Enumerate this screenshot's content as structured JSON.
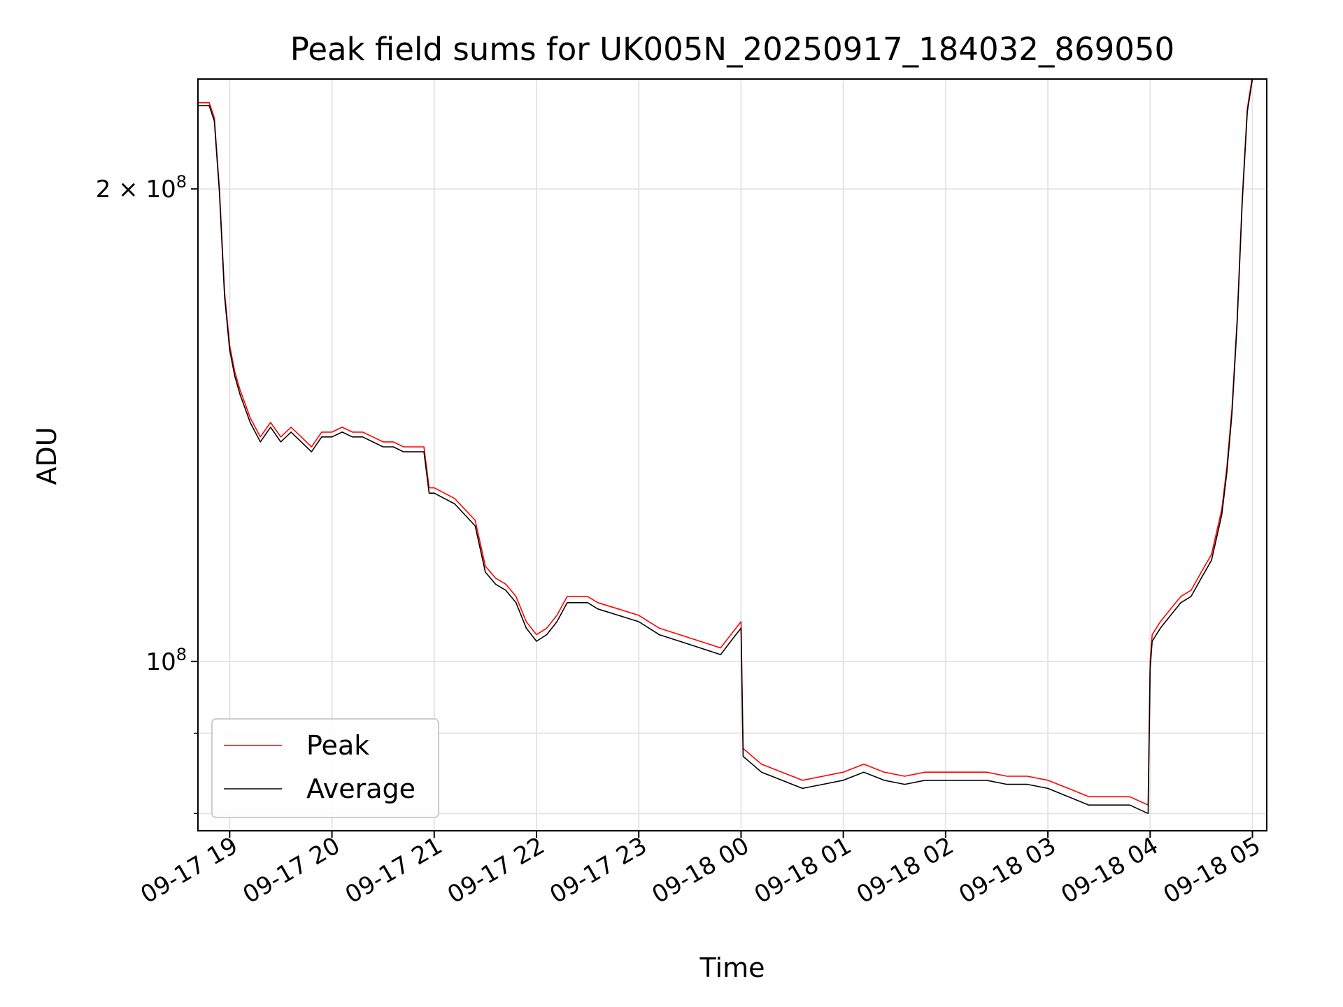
{
  "chart_data": {
    "type": "line",
    "title": "Peak field sums for UK005N_20250917_184032_869050",
    "xlabel": "Time",
    "ylabel": "ADU",
    "y_scale": "log",
    "grid": true,
    "legend_position": "lower-left",
    "x_range_hours": [
      -0.31,
      10.14
    ],
    "x_origin": "09-17 19",
    "ylim": [
      78000000,
      235000000
    ],
    "x_ticks": [
      {
        "hours": 0,
        "label": "09-17 19"
      },
      {
        "hours": 1,
        "label": "09-17 20"
      },
      {
        "hours": 2,
        "label": "09-17 21"
      },
      {
        "hours": 3,
        "label": "09-17 22"
      },
      {
        "hours": 4,
        "label": "09-17 23"
      },
      {
        "hours": 5,
        "label": "09-18 00"
      },
      {
        "hours": 6,
        "label": "09-18 01"
      },
      {
        "hours": 7,
        "label": "09-18 02"
      },
      {
        "hours": 8,
        "label": "09-18 03"
      },
      {
        "hours": 9,
        "label": "09-18 04"
      },
      {
        "hours": 10,
        "label": "09-18 05"
      }
    ],
    "y_major_ticks": [
      {
        "value": 100000000,
        "label_base": "10",
        "label_exp": "8"
      },
      {
        "value": 200000000,
        "label_base": "2 × 10",
        "label_exp": "8"
      }
    ],
    "y_minor_ticks": [
      80000000,
      90000000
    ],
    "series": [
      {
        "name": "Peak",
        "color": "#ff0000",
        "hours": [
          -0.31,
          -0.2,
          -0.15,
          -0.1,
          -0.05,
          0.0,
          0.05,
          0.1,
          0.15,
          0.2,
          0.3,
          0.4,
          0.5,
          0.6,
          0.7,
          0.8,
          0.9,
          1.0,
          1.1,
          1.2,
          1.3,
          1.4,
          1.5,
          1.6,
          1.7,
          1.8,
          1.9,
          1.95,
          2.0,
          2.2,
          2.4,
          2.5,
          2.6,
          2.7,
          2.8,
          2.9,
          3.0,
          3.1,
          3.2,
          3.3,
          3.4,
          3.5,
          3.6,
          3.8,
          4.0,
          4.2,
          4.4,
          4.6,
          4.8,
          4.9,
          5.0,
          5.02,
          5.2,
          5.4,
          5.6,
          5.8,
          6.0,
          6.2,
          6.4,
          6.6,
          6.8,
          7.0,
          7.2,
          7.4,
          7.6,
          7.8,
          8.0,
          8.2,
          8.4,
          8.6,
          8.8,
          8.98,
          9.0,
          9.02,
          9.1,
          9.2,
          9.3,
          9.4,
          9.5,
          9.6,
          9.7,
          9.75,
          9.8,
          9.85,
          9.9,
          9.95,
          10.0
        ],
        "values": [
          227000000,
          227000000,
          222000000,
          200000000,
          172000000,
          159000000,
          153000000,
          149000000,
          146000000,
          143000000,
          139000000,
          142000000,
          139000000,
          141000000,
          139000000,
          137000000,
          140000000,
          140000000,
          141000000,
          140000000,
          140000000,
          139000000,
          138000000,
          138000000,
          137000000,
          137000000,
          137000000,
          129000000,
          129000000,
          127000000,
          123000000,
          115000000,
          113000000,
          112000000,
          110000000,
          106000000,
          104000000,
          105000000,
          107000000,
          110000000,
          110000000,
          110000000,
          109000000,
          108000000,
          107000000,
          105000000,
          104000000,
          103000000,
          102000000,
          104000000,
          106000000,
          88000000,
          86000000,
          85000000,
          84000000,
          84500000,
          85000000,
          86000000,
          85000000,
          84500000,
          85000000,
          85000000,
          85000000,
          85000000,
          84500000,
          84500000,
          84000000,
          83000000,
          82000000,
          82000000,
          82000000,
          81000000,
          100000000,
          104000000,
          106000000,
          108000000,
          110000000,
          111000000,
          114000000,
          117000000,
          125000000,
          133000000,
          145000000,
          165000000,
          197000000,
          225000000,
          236000000
        ]
      },
      {
        "name": "Average",
        "color": "#000000",
        "hours": [
          -0.31,
          -0.2,
          -0.15,
          -0.1,
          -0.05,
          0.0,
          0.05,
          0.1,
          0.15,
          0.2,
          0.3,
          0.4,
          0.5,
          0.6,
          0.7,
          0.8,
          0.9,
          1.0,
          1.1,
          1.2,
          1.3,
          1.4,
          1.5,
          1.6,
          1.7,
          1.8,
          1.9,
          1.95,
          2.0,
          2.2,
          2.4,
          2.5,
          2.6,
          2.7,
          2.8,
          2.9,
          3.0,
          3.1,
          3.2,
          3.3,
          3.4,
          3.5,
          3.6,
          3.8,
          4.0,
          4.2,
          4.4,
          4.6,
          4.8,
          4.9,
          5.0,
          5.02,
          5.2,
          5.4,
          5.6,
          5.8,
          6.0,
          6.2,
          6.4,
          6.6,
          6.8,
          7.0,
          7.2,
          7.4,
          7.6,
          7.8,
          8.0,
          8.2,
          8.4,
          8.6,
          8.8,
          8.98,
          9.0,
          9.02,
          9.1,
          9.2,
          9.3,
          9.4,
          9.5,
          9.6,
          9.7,
          9.75,
          9.8,
          9.85,
          9.9,
          9.95,
          10.0
        ],
        "values": [
          226000000,
          226000000,
          221000000,
          199000000,
          171000000,
          158000000,
          152000000,
          148000000,
          145000000,
          142000000,
          138000000,
          141000000,
          138000000,
          140000000,
          138000000,
          136000000,
          139000000,
          139000000,
          140000000,
          139000000,
          139000000,
          138000000,
          137000000,
          137000000,
          136000000,
          136000000,
          136000000,
          128000000,
          128000000,
          126000000,
          122000000,
          114000000,
          112000000,
          111000000,
          109000000,
          105000000,
          103000000,
          104000000,
          106000000,
          109000000,
          109000000,
          109000000,
          108000000,
          107000000,
          106000000,
          104000000,
          103000000,
          102000000,
          101000000,
          103000000,
          105000000,
          87000000,
          85000000,
          84000000,
          83000000,
          83500000,
          84000000,
          85000000,
          84000000,
          83500000,
          84000000,
          84000000,
          84000000,
          84000000,
          83500000,
          83500000,
          83000000,
          82000000,
          81000000,
          81000000,
          81000000,
          80000000,
          99000000,
          103000000,
          105000000,
          107000000,
          109000000,
          110000000,
          113000000,
          116000000,
          124000000,
          132000000,
          144000000,
          164000000,
          196000000,
          224000000,
          235000000
        ]
      }
    ]
  }
}
